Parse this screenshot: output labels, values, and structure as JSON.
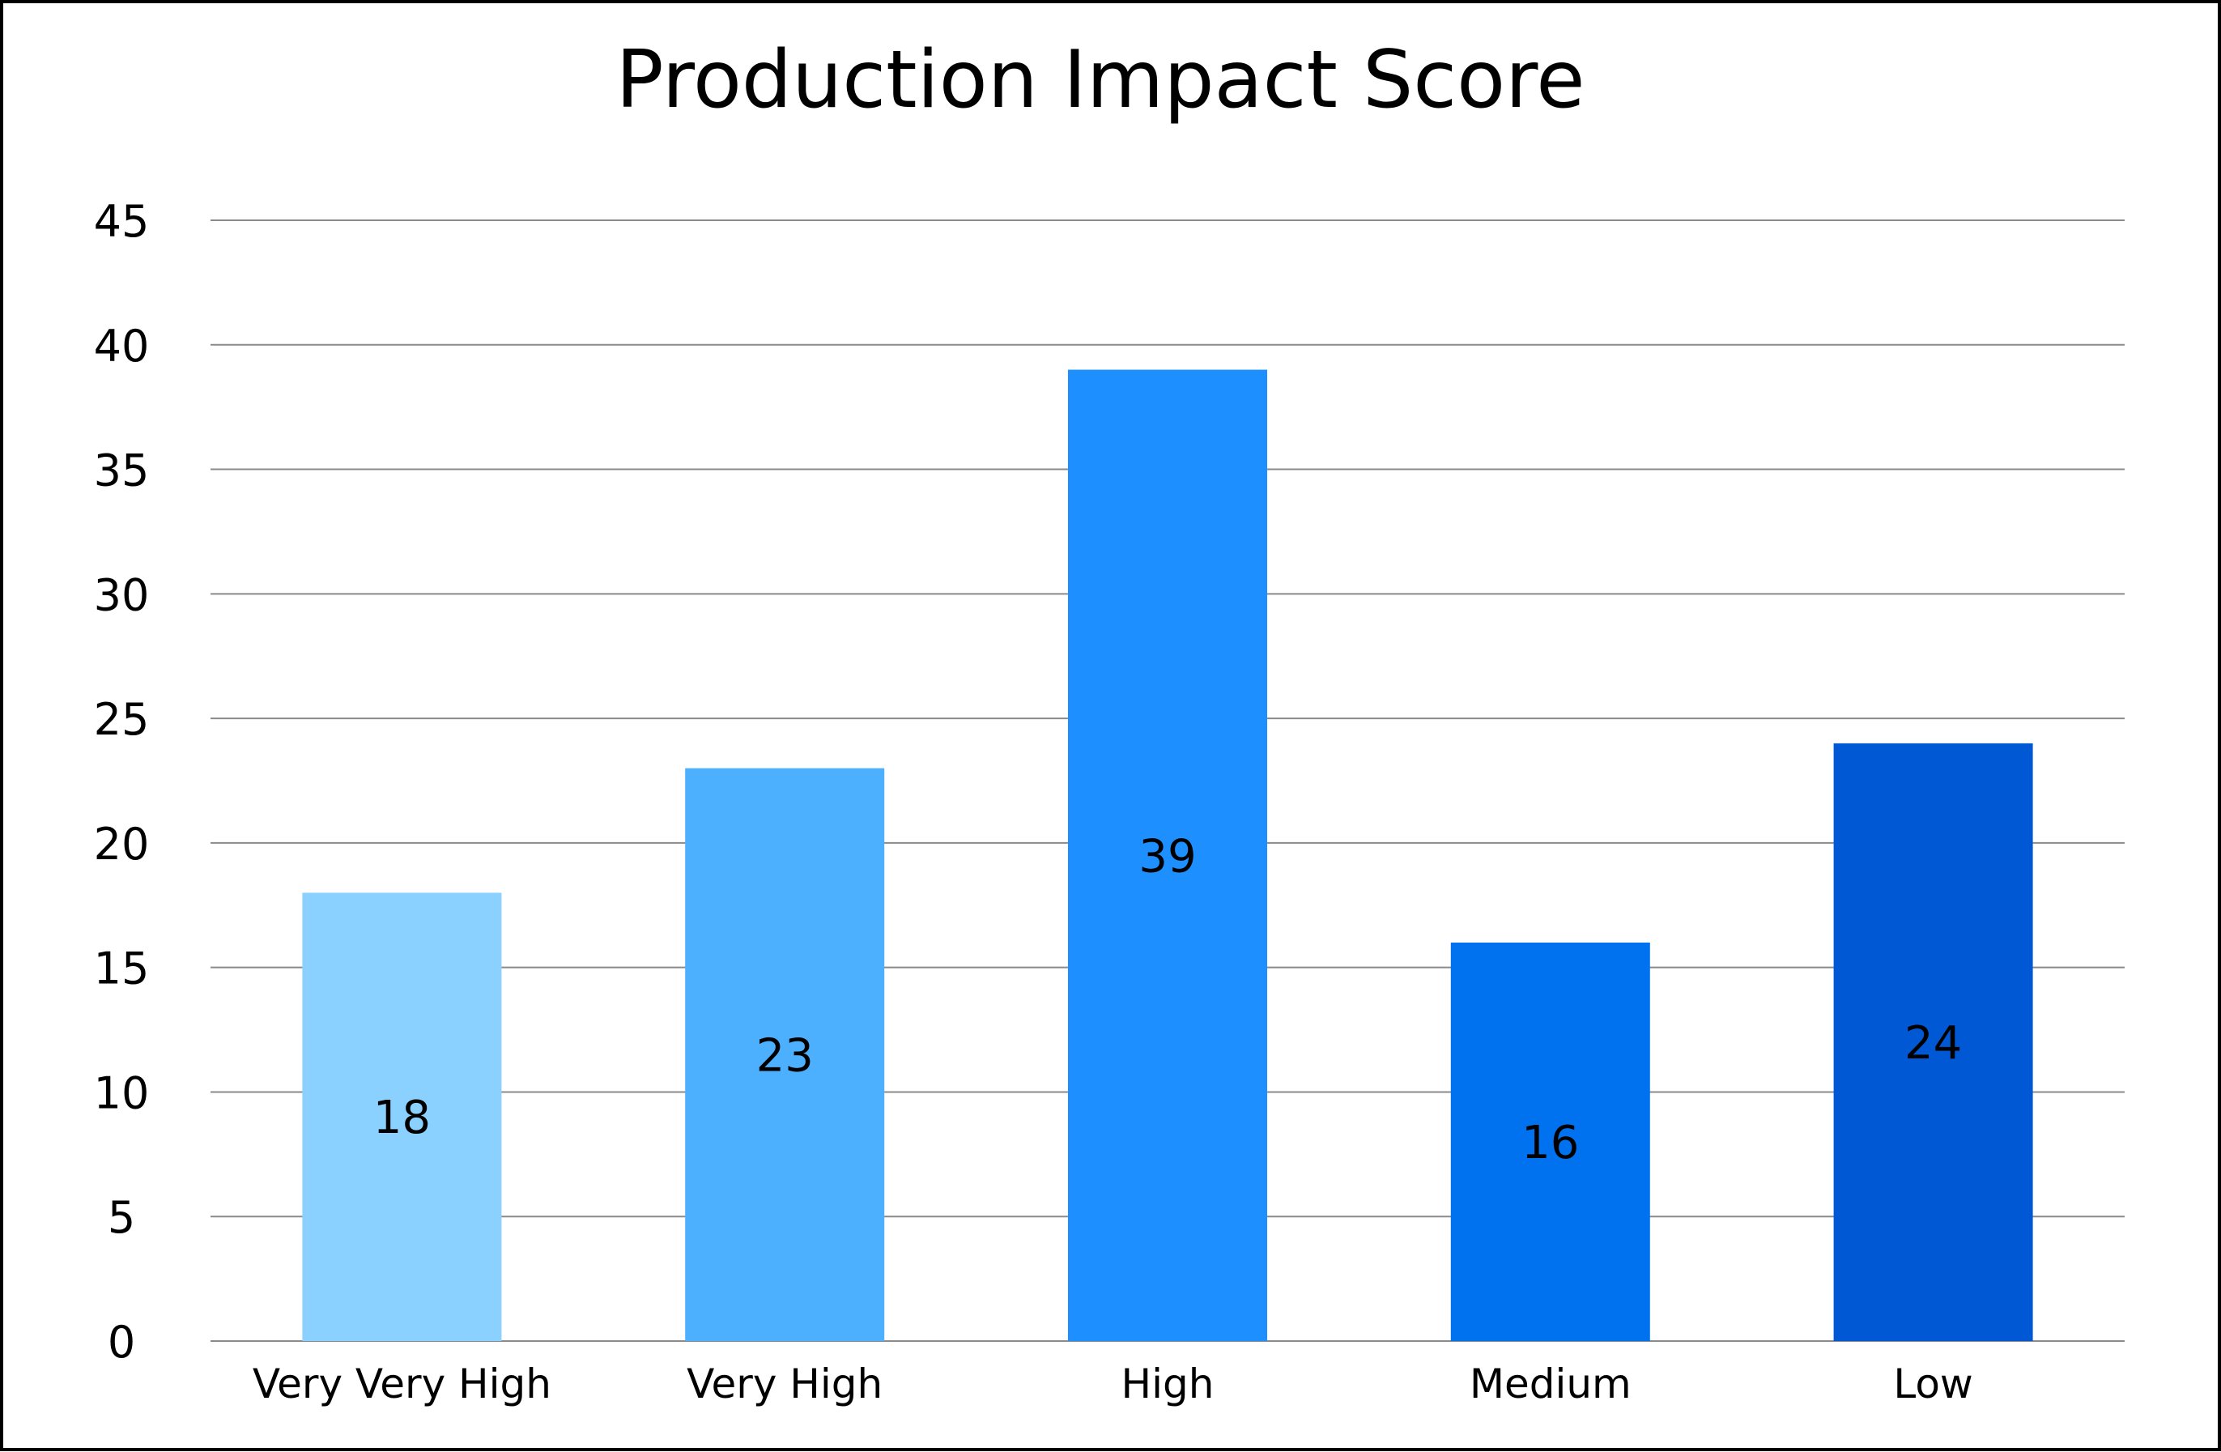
{
  "chart_data": {
    "type": "bar",
    "title": "Production Impact Score",
    "xlabel": "",
    "ylabel": "",
    "categories": [
      "Very Very High",
      "Very High",
      "High",
      "Medium",
      "Low"
    ],
    "values": [
      18,
      23,
      39,
      16,
      24
    ],
    "ylim": [
      0,
      45
    ],
    "yticks": [
      0,
      5,
      10,
      15,
      20,
      25,
      30,
      35,
      40,
      45
    ],
    "grid": true,
    "legend": "none",
    "data_labels": [
      "18",
      "23",
      "39",
      "16",
      "24"
    ],
    "colors": [
      "#8AD1FF",
      "#4DB0FF",
      "#1E8FFF",
      "#0072F0",
      "#0058D4"
    ],
    "gridline_color": "#8A8A8A",
    "text_color": "#000000"
  }
}
